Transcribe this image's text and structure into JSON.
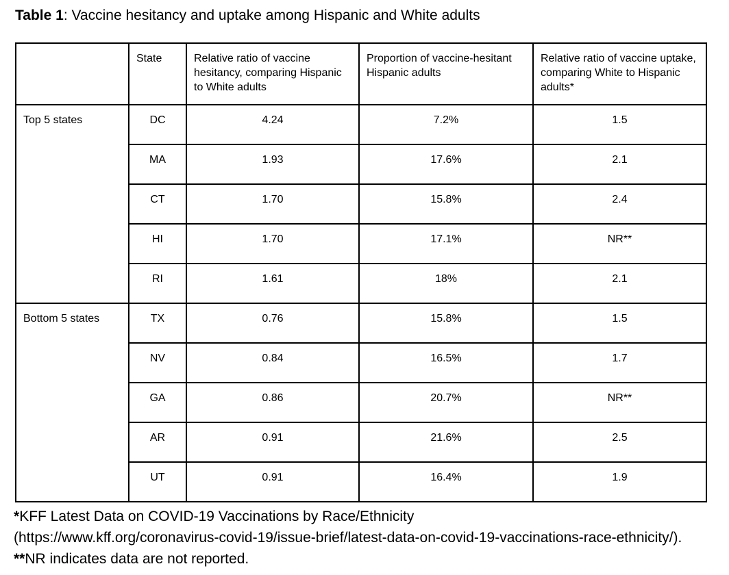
{
  "colors": {
    "background": "#ffffff",
    "ink": "#000000",
    "table_border": "#000000"
  },
  "caption": {
    "label": "Table 1",
    "text": ": Vaccine hesitancy and uptake among Hispanic and White adults"
  },
  "table": {
    "column_headers": {
      "group": "",
      "state": "State",
      "hesitancy_ratio": "Relative ratio of vaccine hesitancy, comparing Hispanic to White adults",
      "hesitant_proportion": "Proportion of vaccine-hesitant Hispanic adults",
      "uptake_ratio": "Relative ratio of vaccine uptake, comparing White to Hispanic adults*"
    },
    "row_groups": [
      {
        "label": "Top 5 states",
        "rows": [
          {
            "state": "DC",
            "hesitancy_ratio": "4.24",
            "hesitant_proportion": "7.2%",
            "uptake_ratio": "1.5"
          },
          {
            "state": "MA",
            "hesitancy_ratio": "1.93",
            "hesitant_proportion": "17.6%",
            "uptake_ratio": "2.1"
          },
          {
            "state": "CT",
            "hesitancy_ratio": "1.70",
            "hesitant_proportion": "15.8%",
            "uptake_ratio": "2.4"
          },
          {
            "state": "HI",
            "hesitancy_ratio": "1.70",
            "hesitant_proportion": "17.1%",
            "uptake_ratio": "NR**"
          },
          {
            "state": "RI",
            "hesitancy_ratio": "1.61",
            "hesitant_proportion": "18%",
            "uptake_ratio": "2.1"
          }
        ]
      },
      {
        "label": "Bottom 5 states",
        "rows": [
          {
            "state": "TX",
            "hesitancy_ratio": "0.76",
            "hesitant_proportion": "15.8%",
            "uptake_ratio": "1.5"
          },
          {
            "state": "NV",
            "hesitancy_ratio": "0.84",
            "hesitant_proportion": "16.5%",
            "uptake_ratio": "1.7"
          },
          {
            "state": "GA",
            "hesitancy_ratio": "0.86",
            "hesitant_proportion": "20.7%",
            "uptake_ratio": "NR**"
          },
          {
            "state": "AR",
            "hesitancy_ratio": "0.91",
            "hesitant_proportion": "21.6%",
            "uptake_ratio": "2.5"
          },
          {
            "state": "UT",
            "hesitancy_ratio": "0.91",
            "hesitant_proportion": "16.4%",
            "uptake_ratio": "1.9"
          }
        ]
      }
    ]
  },
  "footnote": {
    "marker1": "*",
    "source_text": "KFF Latest Data on COVID-19 Vaccinations by Race/Ethnicity",
    "url_text": "(https://www.kff.org/coronavirus-covid-19/issue-brief/latest-data-on-covid-19-vaccinations-race-ethnicity/). ",
    "marker2": "**",
    "nr_text": "NR indicates data are not reported."
  }
}
